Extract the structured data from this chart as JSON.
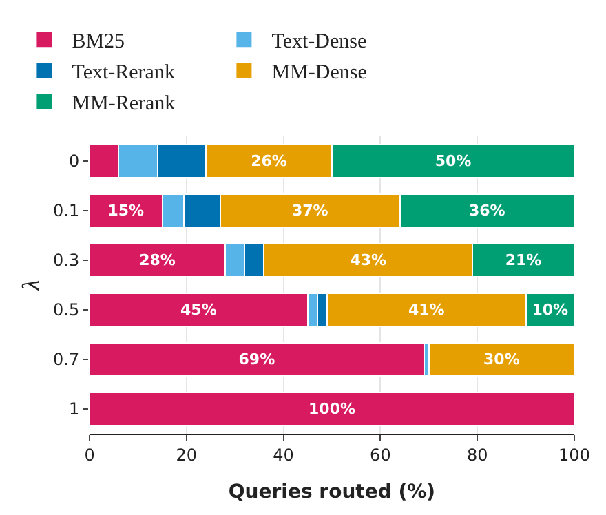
{
  "chart_data": {
    "type": "bar",
    "orientation": "horizontal",
    "stacked": true,
    "categories": [
      "0",
      "0.1",
      "0.3",
      "0.5",
      "0.7",
      "1"
    ],
    "xlabel": "Queries routed (%)",
    "ylabel": "λ",
    "xlim": [
      0,
      100
    ],
    "xticks": [
      0,
      20,
      40,
      60,
      80,
      100
    ],
    "grid": "x",
    "legend": "top",
    "series": [
      {
        "name": "BM25",
        "color": "#d81b60",
        "values": [
          6,
          15,
          28,
          45,
          69,
          100
        ],
        "value_labels": [
          null,
          "15%",
          "28%",
          "45%",
          "69%",
          "100%"
        ]
      },
      {
        "name": "Text-Dense",
        "color": "#56b4e9",
        "values": [
          8,
          4.5,
          4,
          2,
          1,
          null
        ],
        "value_labels": [
          null,
          null,
          null,
          null,
          null,
          null
        ]
      },
      {
        "name": "Text-Rerank",
        "color": "#0072b2",
        "values": [
          10,
          7.5,
          4,
          2,
          null,
          null
        ],
        "value_labels": [
          null,
          null,
          null,
          null,
          null,
          null
        ]
      },
      {
        "name": "MM-Dense",
        "color": "#e69f00",
        "values": [
          26,
          37,
          43,
          41,
          30,
          null
        ],
        "value_labels": [
          "26%",
          "37%",
          "43%",
          "41%",
          "30%",
          null
        ]
      },
      {
        "name": "MM-Rerank",
        "color": "#009e73",
        "values": [
          50,
          36,
          21,
          10,
          null,
          null
        ],
        "value_labels": [
          "50%",
          "36%",
          "21%",
          "10%",
          null,
          null
        ]
      }
    ]
  }
}
